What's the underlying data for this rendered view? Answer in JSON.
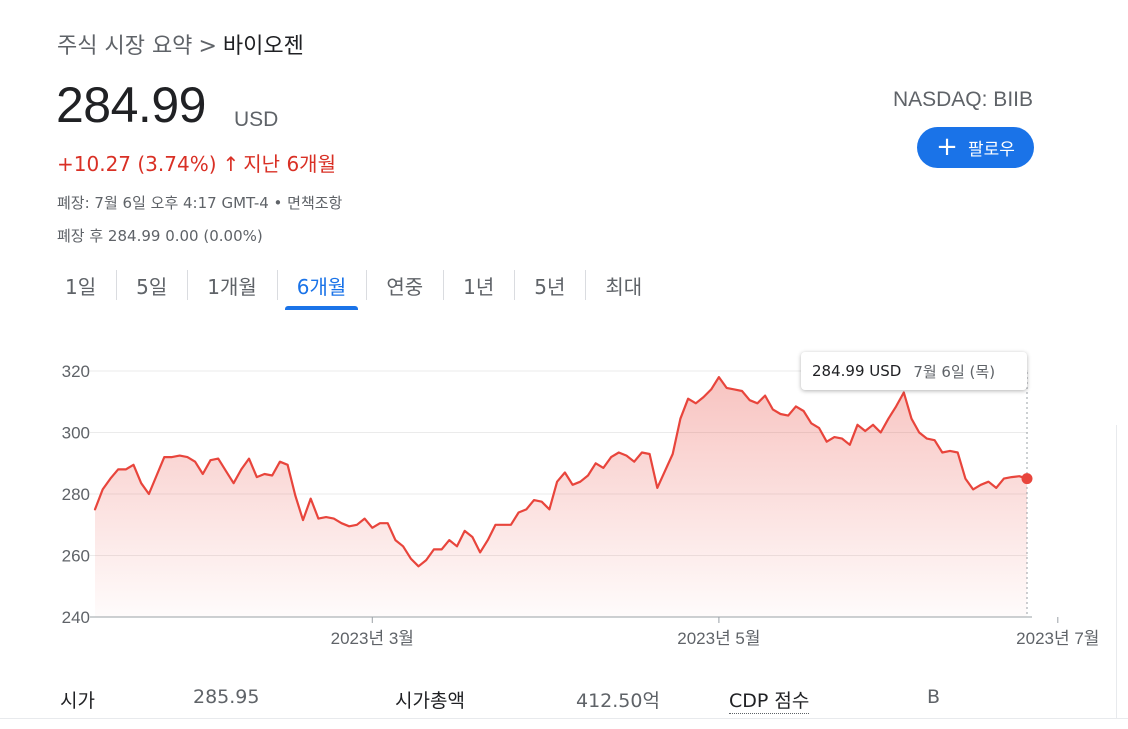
{
  "breadcrumb": {
    "parent": "주식 시장 요약",
    "separator": ">",
    "current": "바이오젠"
  },
  "quote": {
    "price": "284.99",
    "currency": "USD",
    "change": "+10.27 (3.74%)",
    "change_arrow": "↑",
    "change_period": "지난 6개월",
    "closed_info": "폐장: 7월 6일 오후 4:17 GMT-4 • 면책조항",
    "after_hours": "폐장 후 284.99 0.00 (0.00%)",
    "exchange": "NASDAQ: BIIB",
    "follow_label": "팔로우",
    "follow_icon": "+"
  },
  "tabs": [
    "1일",
    "5일",
    "1개월",
    "6개월",
    "연중",
    "1년",
    "5년",
    "최대"
  ],
  "active_tab": "6개월",
  "tooltip": {
    "price": "284.99 USD",
    "date": "7월 6일 (목)"
  },
  "colors": {
    "line": "#e8453c",
    "accent": "#1a73e8",
    "negative_text": "#d93025"
  },
  "chart_data": {
    "type": "area",
    "series": [
      {
        "values": [
          275,
          281.5,
          285,
          288,
          288,
          289.5,
          283.5,
          280,
          286,
          292,
          292,
          292.5,
          292,
          290.5,
          286.5,
          291,
          291.5,
          287.5,
          283.5,
          288,
          291.5,
          285.5,
          286.5,
          286,
          290.5,
          289.5,
          279.5,
          271.5,
          278.5,
          272,
          272.5,
          272,
          270.5,
          269.5,
          270,
          272,
          269,
          270.5,
          270.5,
          265,
          263,
          259,
          256.5,
          258.5,
          262,
          262,
          265,
          263,
          268,
          266,
          261,
          265,
          270,
          270,
          270,
          274,
          275,
          278,
          277.5,
          275,
          284,
          287,
          283,
          284,
          286,
          290,
          288.5,
          292,
          293.5,
          292.5,
          290.5,
          293.5,
          293,
          282,
          287.5,
          293,
          304.5,
          311,
          309.5,
          311.5,
          314,
          318,
          314.5,
          314,
          313.5,
          310.5,
          309.5,
          312,
          307.5,
          306,
          305.5,
          308.5,
          307,
          303,
          301.5,
          297,
          298.5,
          298,
          296,
          302.5,
          300.5,
          302.5,
          300,
          304.5,
          308.5,
          313,
          304.5,
          300,
          298,
          297.5,
          293.5,
          294,
          293.5,
          285,
          281.5,
          283,
          284,
          282,
          285,
          285.5,
          285.8,
          284.99
        ]
      }
    ],
    "x_tick_labels": [
      "2023년 3월",
      "2023년 5월",
      "2023년 7월"
    ],
    "y_tick_labels": [
      "240",
      "260",
      "280",
      "300",
      "320"
    ],
    "x_ticks_at_index": [
      36,
      81,
      125
    ],
    "ylim": [
      240,
      320
    ],
    "grid": true,
    "last_point_highlighted": true
  },
  "stats": [
    {
      "label": "시가",
      "value": "285.95"
    },
    {
      "label": "시가총액",
      "value": "412.50억"
    },
    {
      "label": "CDP 점수",
      "value": "B"
    }
  ]
}
